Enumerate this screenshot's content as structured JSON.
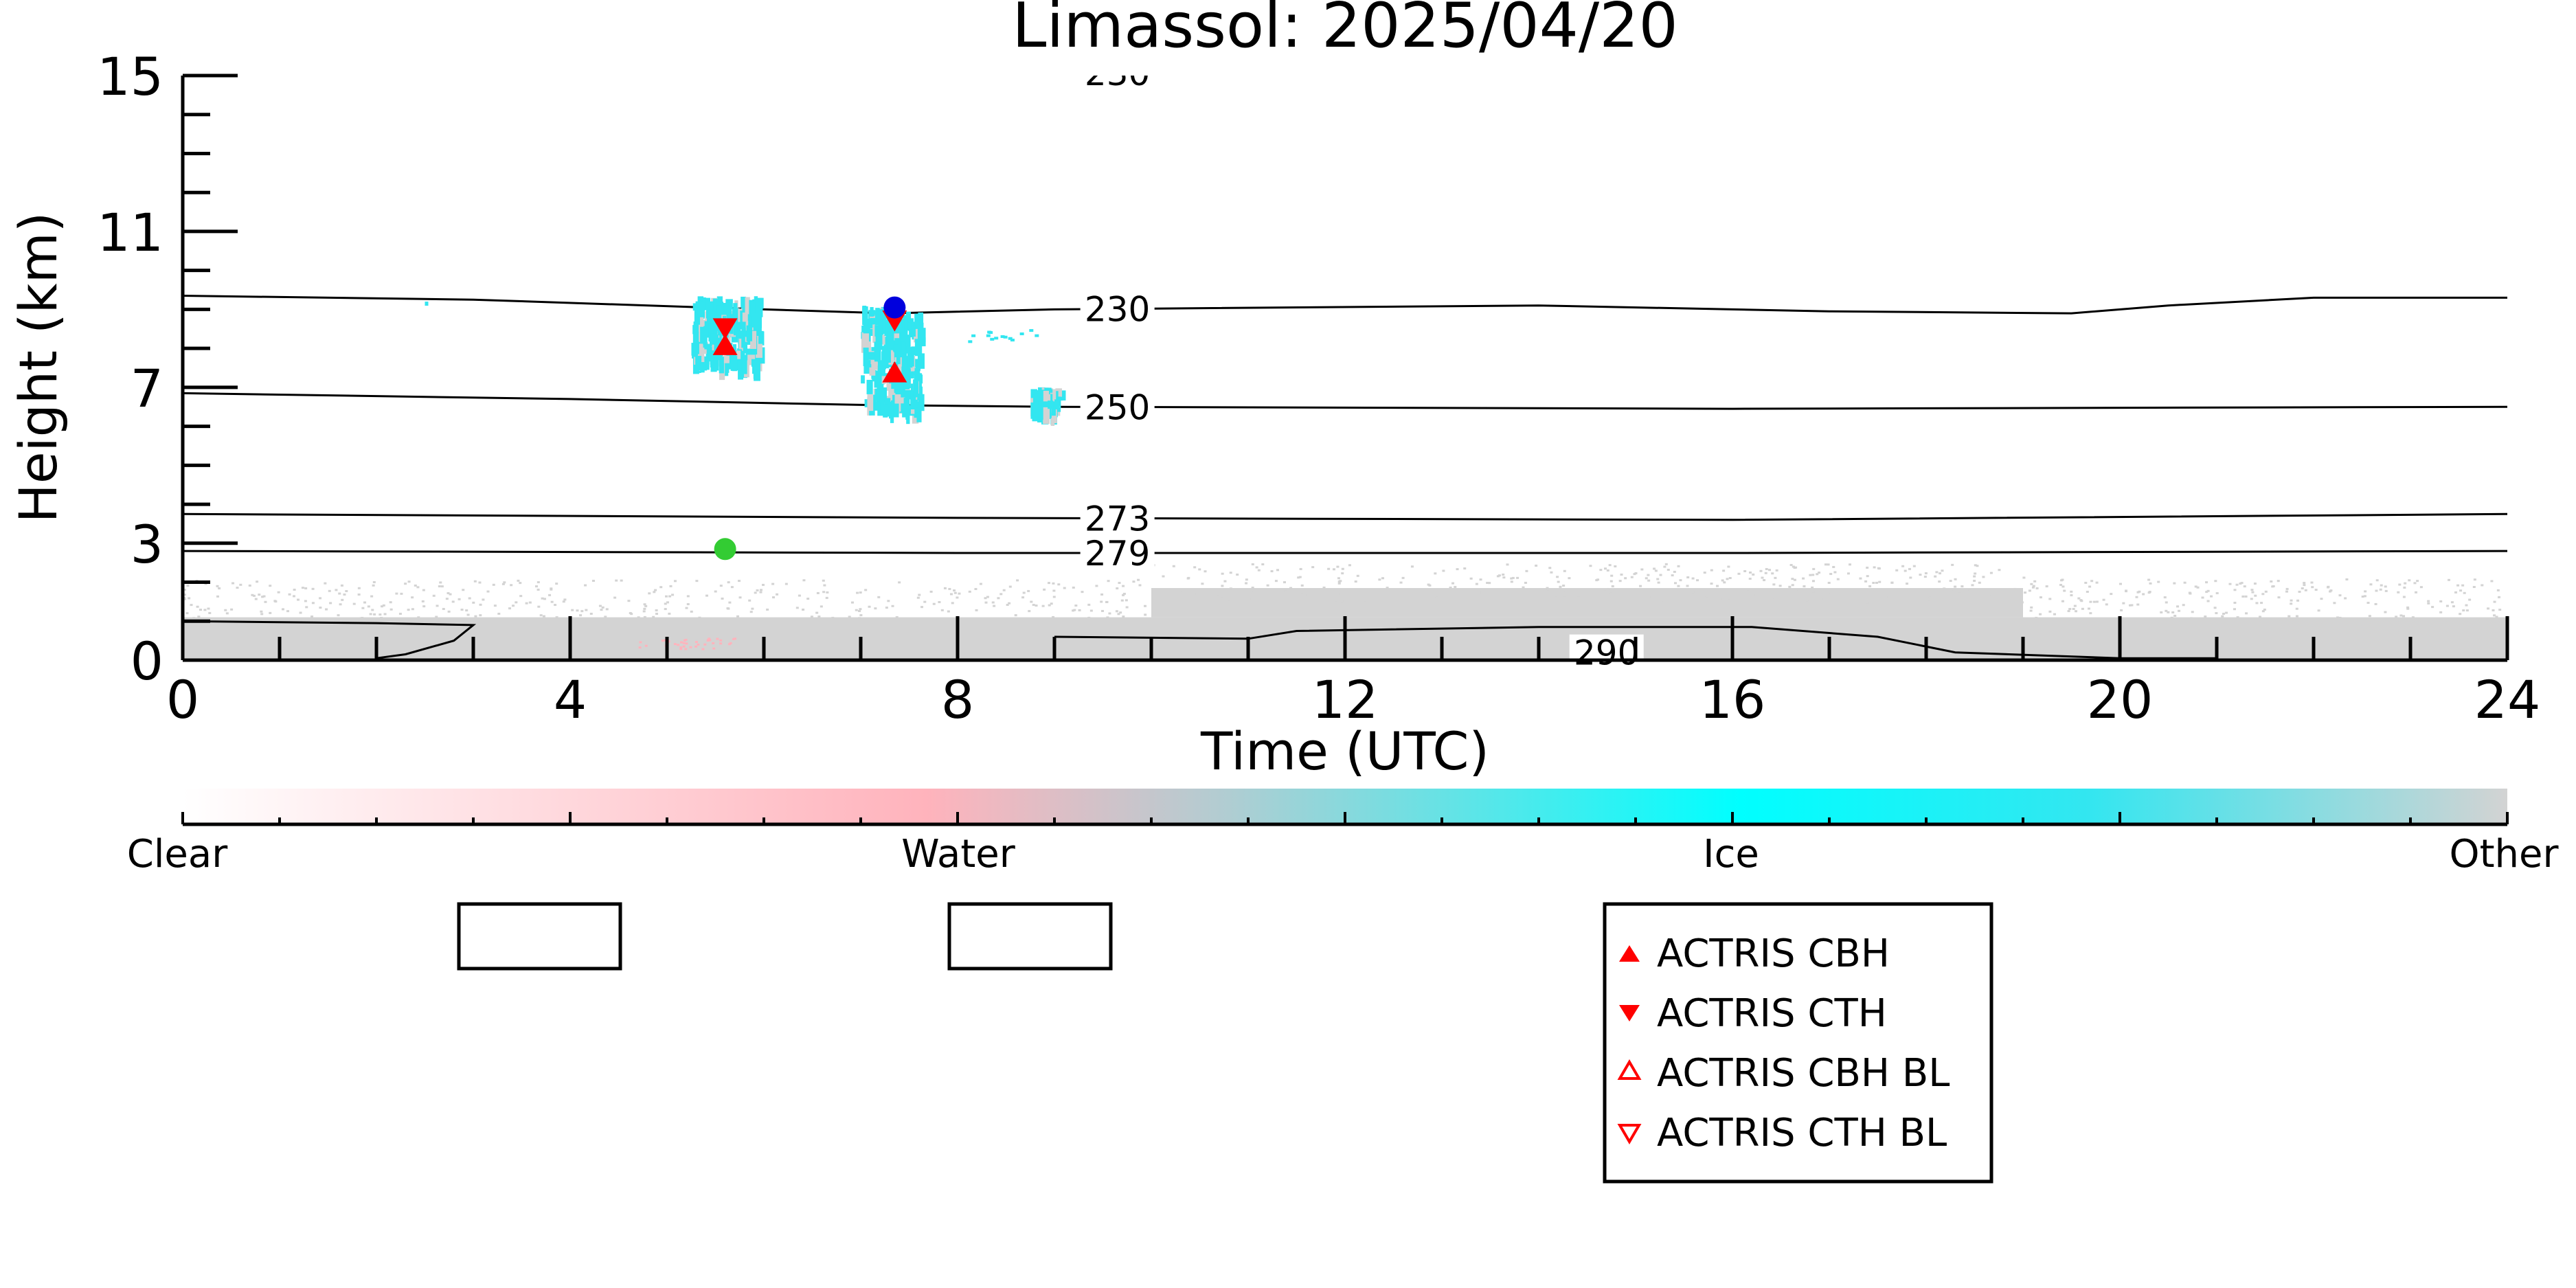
{
  "chart_data": {
    "type": "heatmap",
    "title": "Limassol: 2025/04/20",
    "xlabel": "Time (UTC)",
    "ylabel": "Height (km)",
    "xlim": [
      0,
      24
    ],
    "ylim": [
      0,
      15
    ],
    "x_ticks": [
      "0",
      "4",
      "8",
      "12",
      "16",
      "20",
      "24"
    ],
    "y_ticks": [
      "0",
      "3",
      "7",
      "11",
      "15"
    ],
    "colorbar": {
      "labels": [
        "Clear",
        "Water",
        "Ice",
        "Other"
      ],
      "colors": [
        "#ffffff",
        "#ffb3bc",
        "#00ffff",
        "#d3d3d3"
      ]
    },
    "contours": [
      {
        "label": "230",
        "points": [
          [
            0,
            9.35
          ],
          [
            3,
            9.25
          ],
          [
            6,
            9.0
          ],
          [
            7.3,
            8.9
          ],
          [
            9,
            9.0
          ],
          [
            14,
            9.1
          ],
          [
            17,
            8.95
          ],
          [
            19.5,
            8.9
          ],
          [
            20.5,
            9.1
          ],
          [
            22,
            9.3
          ],
          [
            24,
            9.3
          ]
        ]
      },
      {
        "label": "250",
        "points": [
          [
            0,
            6.85
          ],
          [
            4,
            6.7
          ],
          [
            7,
            6.55
          ],
          [
            9,
            6.5
          ],
          [
            16,
            6.45
          ],
          [
            24,
            6.5
          ]
        ]
      },
      {
        "label": "273",
        "points": [
          [
            0,
            3.75
          ],
          [
            8,
            3.65
          ],
          [
            16,
            3.6
          ],
          [
            24,
            3.75
          ]
        ]
      },
      {
        "label": "279",
        "points": [
          [
            0,
            2.8
          ],
          [
            8,
            2.75
          ],
          [
            16,
            2.75
          ],
          [
            24,
            2.8
          ]
        ]
      },
      {
        "label": "290",
        "points": [
          [
            9,
            0.6
          ],
          [
            11,
            0.55
          ],
          [
            11.5,
            0.75
          ],
          [
            14,
            0.85
          ],
          [
            16.2,
            0.85
          ],
          [
            17.5,
            0.6
          ],
          [
            18.3,
            0.2
          ],
          [
            20,
            0.05
          ],
          [
            21,
            0.05
          ]
        ]
      },
      {
        "label": "",
        "points": [
          [
            0,
            1.0
          ],
          [
            2,
            0.95
          ],
          [
            3,
            0.9
          ],
          [
            2.8,
            0.5
          ],
          [
            2.3,
            0.15
          ],
          [
            2,
            0.05
          ]
        ]
      }
    ],
    "ice_clusters": [
      {
        "t": 5.6,
        "h": 8.5,
        "w": 0.35,
        "d": 0.85
      },
      {
        "t": 7.3,
        "h": 7.8,
        "w": 0.3,
        "d": 1.3
      },
      {
        "t": 8.9,
        "h": 6.7,
        "w": 0.15,
        "d": 0.3
      }
    ],
    "markers": [
      {
        "name": "ACTRIS CBH",
        "x": 5.6,
        "y": 8.05
      },
      {
        "name": "ACTRIS CTH",
        "x": 5.6,
        "y": 8.55
      },
      {
        "name": "ACTRIS CBH",
        "x": 7.35,
        "y": 7.35
      },
      {
        "name": "ACTRIS CTH",
        "x": 7.35,
        "y": 8.75
      },
      {
        "name": "cloud top (blue)",
        "x": 7.35,
        "y": 9.05
      },
      {
        "name": "boundary layer (green)",
        "x": 5.6,
        "y": 2.85
      }
    ],
    "legend": {
      "placement": "bottom-center",
      "entries": [
        "ACTRIS CBH",
        "ACTRIS CTH",
        "ACTRIS CBH BL",
        "ACTRIS CTH BL"
      ]
    },
    "colors": {
      "marker_red": "#ff0000",
      "marker_blue": "#0000dd",
      "marker_green": "#33cc33",
      "other_gray": "#d3d3d3",
      "ice_cyan": "#33e6f0",
      "water_pink": "#ffb3bc"
    }
  }
}
